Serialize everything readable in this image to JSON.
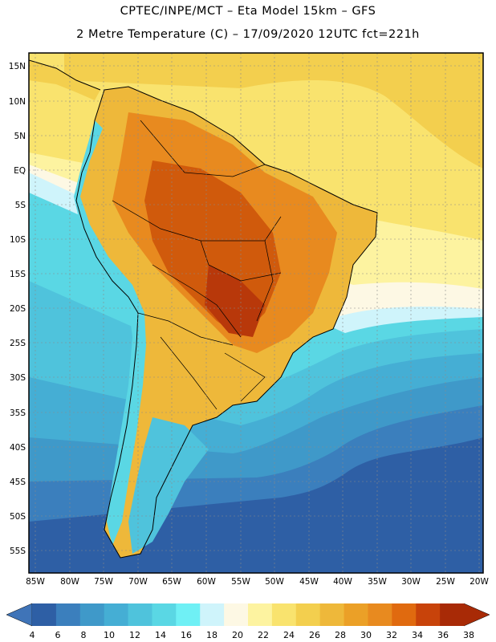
{
  "header": {
    "title_line1": "CPTEC/INPE/MCT –  Eta Model 15km – GFS",
    "title_line2": "2 Metre Temperature (C) – 17/09/2020 12UTC fct=221h"
  },
  "axes": {
    "lat_labels": [
      "15N",
      "10N",
      "5N",
      "EQ",
      "5S",
      "10S",
      "15S",
      "20S",
      "25S",
      "30S",
      "35S",
      "40S",
      "45S",
      "50S",
      "55S"
    ],
    "lon_labels": [
      "85W",
      "80W",
      "75W",
      "70W",
      "65W",
      "60W",
      "55W",
      "50W",
      "45W",
      "40W",
      "35W",
      "30W",
      "25W",
      "20W"
    ]
  },
  "colorbar": {
    "values": [
      "4",
      "6",
      "8",
      "10",
      "12",
      "14",
      "16",
      "18",
      "20",
      "22",
      "24",
      "26",
      "28",
      "30",
      "32",
      "34",
      "36",
      "38"
    ],
    "colors": [
      "#2e5fa5",
      "#3b7fbd",
      "#3f99c9",
      "#45aed4",
      "#4fc3dc",
      "#5ad7e4",
      "#6ff0f5",
      "#cff4fb",
      "#fdf8e4",
      "#fdf3a0",
      "#f9e36e",
      "#f3cf4e",
      "#eeb83a",
      "#eba027",
      "#e88a1f",
      "#e06a0f",
      "#c8430a",
      "#a82a06"
    ],
    "low_color": "#3f74b8",
    "high_color": "#a82a06"
  }
}
